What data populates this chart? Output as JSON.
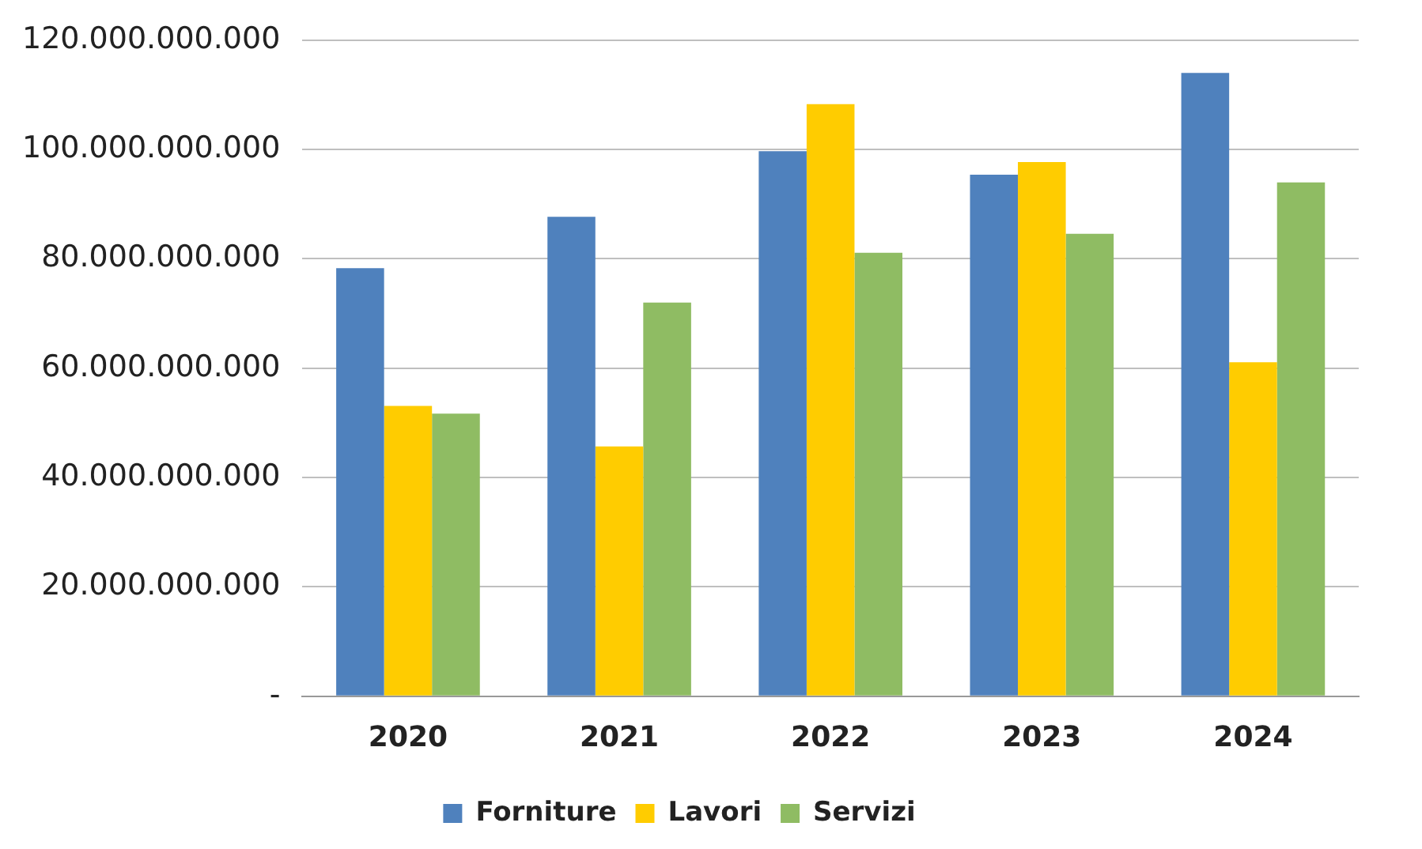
{
  "chart_data": {
    "type": "bar",
    "categories": [
      "2020",
      "2021",
      "2022",
      "2023",
      "2024"
    ],
    "series": [
      {
        "name": "Forniture",
        "color": "#4f81bd",
        "values": [
          78300000000,
          87700000000,
          99700000000,
          95400000000,
          114000000000
        ]
      },
      {
        "name": "Lavori",
        "color": "#ffcc00",
        "values": [
          53100000000,
          45700000000,
          108300000000,
          97700000000,
          61100000000
        ]
      },
      {
        "name": "Servizi",
        "color": "#8fbc63",
        "values": [
          51700000000,
          72000000000,
          81100000000,
          84600000000,
          94000000000
        ]
      }
    ],
    "ylim": [
      0,
      120000000000
    ],
    "yticks": [
      {
        "value": 0,
        "label": "-"
      },
      {
        "value": 20000000000,
        "label": "20.000.000.000"
      },
      {
        "value": 40000000000,
        "label": "40.000.000.000"
      },
      {
        "value": 60000000000,
        "label": "60.000.000.000"
      },
      {
        "value": 80000000000,
        "label": "80.000.000.000"
      },
      {
        "value": 100000000000,
        "label": "100.000.000.000"
      },
      {
        "value": 120000000000,
        "label": "120.000.000.000"
      }
    ],
    "grid": "y",
    "legend": "bottom"
  }
}
